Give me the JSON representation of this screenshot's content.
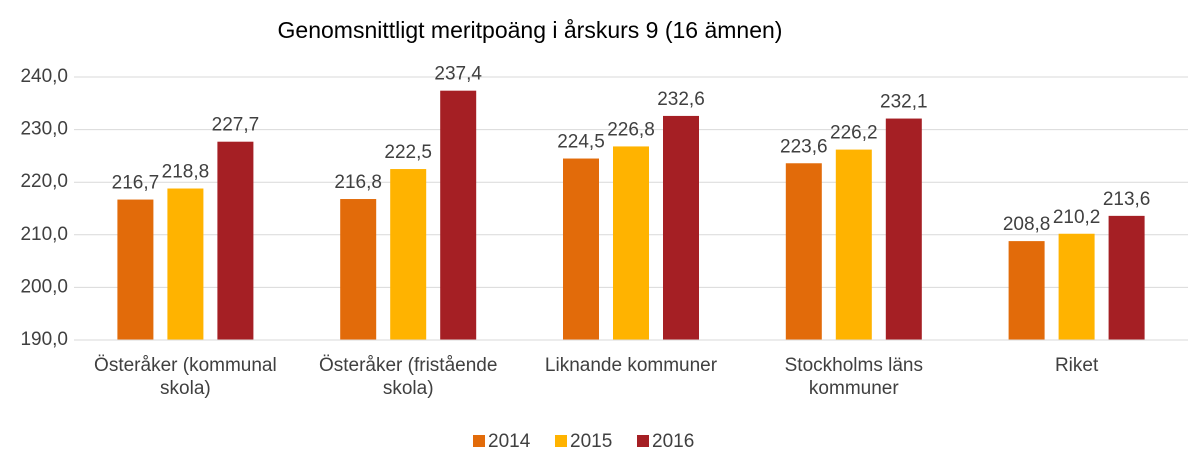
{
  "chart_data": {
    "type": "bar",
    "title": "Genomsnittligt meritpoäng i årskurs 9 (16 ämnen)",
    "categories": [
      "Österåker (kommunal skola)",
      "Österåker (fristående skola)",
      "Liknande kommuner",
      "Stockholms läns kommuner",
      "Riket"
    ],
    "series": [
      {
        "name": "2014",
        "color": "#e26b0a",
        "values": [
          216.7,
          216.8,
          224.5,
          223.6,
          208.8
        ],
        "value_labels": [
          "216,7",
          "216,8",
          "224,5",
          "223,6",
          "208,8"
        ]
      },
      {
        "name": "2015",
        "color": "#ffb300",
        "values": [
          218.8,
          222.5,
          226.8,
          226.2,
          210.2
        ],
        "value_labels": [
          "218,8",
          "222,5",
          "226,8",
          "226,2",
          "210,2"
        ]
      },
      {
        "name": "2016",
        "color": "#a51f24",
        "values": [
          227.7,
          237.4,
          232.6,
          232.1,
          213.6
        ],
        "value_labels": [
          "227,7",
          "237,4",
          "232,6",
          "232,1",
          "213,6"
        ]
      }
    ],
    "ylim": [
      190,
      240
    ],
    "yticks": [
      {
        "value": 190,
        "label": "190,0"
      },
      {
        "value": 200,
        "label": "200,0"
      },
      {
        "value": 210,
        "label": "210,0"
      },
      {
        "value": 220,
        "label": "220,0"
      },
      {
        "value": 230,
        "label": "230,0"
      },
      {
        "value": 240,
        "label": "240,0"
      }
    ],
    "grid": true,
    "legend": "bottom"
  }
}
